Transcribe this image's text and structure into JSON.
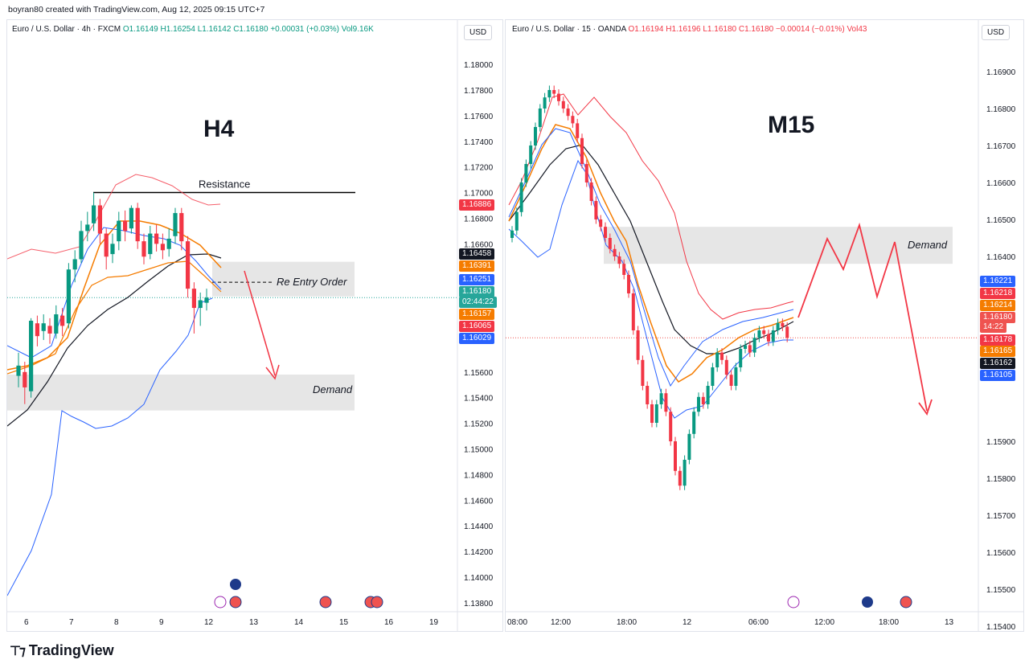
{
  "header": {
    "credit": "boyran80 created with TradingView.com, Aug 12, 2025 09:15 UTC+7"
  },
  "left": {
    "ohlc": {
      "symbol": "Euro / U.S. Dollar · 4h · FXCM",
      "o": "O1.16149",
      "h": "H1.16254",
      "l": "L1.16142",
      "c": "C1.16180",
      "chg": "+0.00031 (+0.03%)",
      "vol": "Vol9.16K"
    },
    "currency": "USD",
    "tf_label": "H4",
    "annotations": {
      "resistance": "Resistance",
      "reentry": "Re Entry Order",
      "demand": "Demand"
    },
    "price_ticks": [
      "1.18000",
      "1.17800",
      "1.17600",
      "1.17400",
      "1.17200",
      "1.17000",
      "1.16800",
      "1.16600",
      "1.15600",
      "1.15400",
      "1.15200",
      "1.15000",
      "1.14800",
      "1.14600",
      "1.14400",
      "1.14200",
      "1.14000",
      "1.13800"
    ],
    "time_ticks": [
      "6",
      "7",
      "8",
      "9",
      "12",
      "13",
      "14",
      "15",
      "16",
      "19"
    ],
    "tags": [
      {
        "text": "1.16886",
        "color": "#f23645"
      },
      {
        "text": "1.16458",
        "color": "#131722"
      },
      {
        "text": "1.16391",
        "color": "#f57c00"
      },
      {
        "text": "1.16251",
        "color": "#2962ff"
      },
      {
        "text": "1.16180",
        "color": "#26a69a"
      },
      {
        "text": "02:44:22",
        "color": "#26a69a"
      },
      {
        "text": "1.16157",
        "color": "#f57c00"
      },
      {
        "text": "1.16065",
        "color": "#f23645"
      },
      {
        "text": "1.16029",
        "color": "#2962ff"
      }
    ]
  },
  "right": {
    "ohlc": {
      "symbol": "Euro / U.S. Dollar · 15 · OANDA",
      "o": "O1.16194",
      "h": "H1.16196",
      "l": "L1.16180",
      "c": "C1.16180",
      "chg": "−0.00014 (−0.01%)",
      "vol": "Vol43"
    },
    "currency": "USD",
    "tf_label": "M15",
    "annotations": {
      "demand": "Demand"
    },
    "price_ticks": [
      "1.16900",
      "1.16800",
      "1.16700",
      "1.16600",
      "1.16500",
      "1.16400",
      "1.15900",
      "1.15800",
      "1.15700",
      "1.15600",
      "1.15500",
      "1.15400"
    ],
    "time_ticks": [
      "08:00",
      "12:00",
      "18:00",
      "12",
      "06:00",
      "12:00",
      "18:00",
      "13"
    ],
    "tags": [
      {
        "text": "1.16221",
        "color": "#2962ff"
      },
      {
        "text": "1.16218",
        "color": "#f23645"
      },
      {
        "text": "1.16214",
        "color": "#f57c00"
      },
      {
        "text": "1.16180",
        "color": "#ef5350"
      },
      {
        "text": "14:22",
        "color": "#ef5350"
      },
      {
        "text": "1.16178",
        "color": "#f23645"
      },
      {
        "text": "1.16165",
        "color": "#f57c00"
      },
      {
        "text": "1.16162",
        "color": "#131722"
      },
      {
        "text": "1.16105",
        "color": "#2962ff"
      }
    ]
  },
  "brand": "TradingView",
  "chart_data": [
    {
      "type": "candlestick",
      "title": "Euro / U.S. Dollar · 4h · FXCM",
      "ylim": [
        1.1373,
        1.1822
      ],
      "x": [
        "6",
        "7",
        "8",
        "9",
        "12",
        "13",
        "14",
        "15",
        "16",
        "19"
      ],
      "levels": {
        "resistance": 1.17,
        "reentry": 1.163,
        "demand_zone": [
          1.153,
          1.1558
        ]
      },
      "last_close": 1.1618
    },
    {
      "type": "candlestick",
      "title": "Euro / U.S. Dollar · 15 · OANDA",
      "ylim": [
        1.1535,
        1.1695
      ],
      "x": [
        "08:00",
        "12:00",
        "18:00",
        "12",
        "06:00",
        "12:00",
        "18:00",
        "13"
      ],
      "levels": {
        "demand_zone": [
          1.1638,
          1.1648
        ]
      },
      "last_close": 1.1618
    }
  ]
}
